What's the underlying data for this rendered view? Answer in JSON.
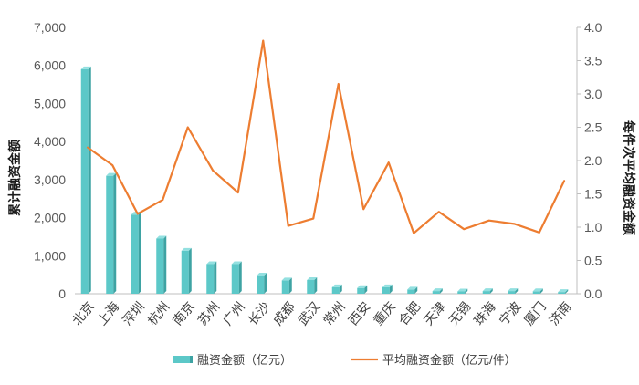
{
  "chart_data": {
    "type": "bar+line",
    "categories": [
      "北京",
      "上海",
      "深圳",
      "杭州",
      "南京",
      "苏州",
      "广州",
      "长沙",
      "成都",
      "武汉",
      "常州",
      "西安",
      "重庆",
      "合肥",
      "天津",
      "无锡",
      "珠海",
      "宁波",
      "厦门",
      "济南"
    ],
    "series": [
      {
        "name": "融资金额（亿元）",
        "type": "bar",
        "axis": "left",
        "values": [
          5900,
          3100,
          2080,
          1450,
          1130,
          780,
          780,
          480,
          350,
          360,
          170,
          150,
          170,
          110,
          70,
          60,
          70,
          70,
          65,
          45
        ]
      },
      {
        "name": "平均融资金额（亿元/件）",
        "type": "line",
        "axis": "right",
        "values": [
          2.2,
          1.93,
          1.2,
          1.41,
          2.5,
          1.85,
          1.52,
          3.8,
          1.02,
          1.13,
          3.15,
          1.27,
          1.97,
          0.91,
          1.23,
          0.97,
          1.1,
          1.05,
          0.92,
          1.7
        ]
      }
    ],
    "ylabel_left": "累计融资金额",
    "ylabel_right": "每件次平均融资金额",
    "ylim_left": [
      0,
      7000
    ],
    "ylim_right": [
      0,
      4.0
    ],
    "yticks_left": [
      "0",
      "1,000",
      "2,000",
      "3,000",
      "4,000",
      "5,000",
      "6,000",
      "7,000"
    ],
    "yticks_right": [
      "0.0",
      "0.5",
      "1.0",
      "1.5",
      "2.0",
      "2.5",
      "3.0",
      "3.5",
      "4.0"
    ],
    "legend_position": "bottom",
    "grid": false,
    "colors": {
      "bar": "#5cc8c8",
      "bar_dark": "#3ea3a3",
      "bar_top": "#93e0e0",
      "line": "#ed7d31",
      "axis": "#bfbfbf"
    }
  }
}
